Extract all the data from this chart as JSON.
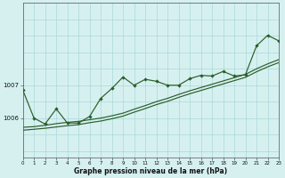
{
  "xlabel": "Graphe pression niveau de la mer (hPa)",
  "bg_color": "#d6f0f0",
  "grid_color": "#aad8d8",
  "line_color": "#2a5e2a",
  "xlim": [
    0,
    23
  ],
  "ylim": [
    1004.8,
    1009.5
  ],
  "yticks": [
    1006,
    1007
  ],
  "xticks": [
    0,
    1,
    2,
    3,
    4,
    5,
    6,
    7,
    8,
    9,
    10,
    11,
    12,
    13,
    14,
    15,
    16,
    17,
    18,
    19,
    20,
    21,
    22,
    23
  ],
  "line1_x": [
    0,
    1,
    2,
    3,
    4,
    5,
    6,
    7,
    8,
    9,
    10,
    11,
    12,
    13,
    14,
    15,
    16,
    17,
    18,
    19,
    20,
    21,
    22,
    23
  ],
  "line1_y": [
    1006.85,
    1006.0,
    1005.82,
    1006.28,
    1005.85,
    1005.85,
    1006.05,
    1006.6,
    1006.9,
    1007.25,
    1007.0,
    1007.18,
    1007.12,
    1007.0,
    1007.0,
    1007.2,
    1007.3,
    1007.28,
    1007.42,
    1007.28,
    1007.32,
    1008.2,
    1008.52,
    1008.35
  ],
  "line2_x": [
    0,
    1,
    2,
    3,
    4,
    5,
    6,
    7,
    8,
    9,
    10,
    11,
    12,
    13,
    14,
    15,
    16,
    17,
    18,
    19,
    20,
    21,
    22,
    23
  ],
  "line2_y": [
    1005.72,
    1005.74,
    1005.78,
    1005.83,
    1005.87,
    1005.9,
    1005.95,
    1006.0,
    1006.07,
    1006.15,
    1006.27,
    1006.38,
    1006.5,
    1006.6,
    1006.72,
    1006.83,
    1006.93,
    1007.03,
    1007.13,
    1007.23,
    1007.33,
    1007.5,
    1007.65,
    1007.78
  ],
  "line3_x": [
    0,
    1,
    2,
    3,
    4,
    5,
    6,
    7,
    8,
    9,
    10,
    11,
    12,
    13,
    14,
    15,
    16,
    17,
    18,
    19,
    20,
    21,
    22,
    23
  ],
  "line3_y": [
    1005.63,
    1005.66,
    1005.69,
    1005.73,
    1005.77,
    1005.8,
    1005.86,
    1005.91,
    1005.98,
    1006.06,
    1006.18,
    1006.29,
    1006.41,
    1006.51,
    1006.63,
    1006.74,
    1006.84,
    1006.94,
    1007.04,
    1007.14,
    1007.24,
    1007.41,
    1007.56,
    1007.69
  ]
}
